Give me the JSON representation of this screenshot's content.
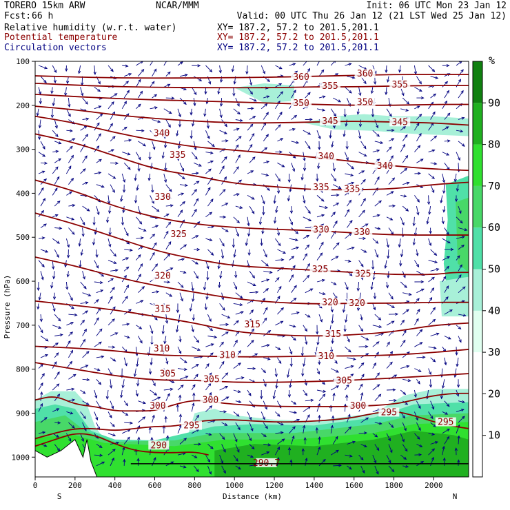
{
  "header": {
    "model": "TORERO  15km ARW",
    "org": "NCAR/MMM",
    "init": "Init: 06 UTC Mon 23 Jan 12",
    "fcst_label": "Fcst:",
    "fcst_value": "66 h",
    "valid": "Valid: 00 UTC Thu 26 Jan 12 (21 LST Wed 25 Jan 12)",
    "fields": [
      {
        "name": "Relative humidity (w.r.t. water)",
        "xy": "XY= 187.2, 57.2 to 201.5,201.1",
        "color": "#000000"
      },
      {
        "name": "Potential temperature",
        "xy": "XY= 187.2, 57.2 to 201.5,201.1",
        "color": "#8b0000"
      },
      {
        "name": "Circulation vectors",
        "xy": "XY= 187.2, 57.2 to 201.5,201.1",
        "color": "#000080"
      }
    ]
  },
  "colors": {
    "theta": "#8b0000",
    "vectors": "#00007f",
    "rh_levels": [
      "#ffffff",
      "#ffffff",
      "#ffffff",
      "#e0fff0",
      "#a8f0d8",
      "#50e0a8",
      "#48d868",
      "#30e030",
      "#20b020",
      "#108010"
    ]
  },
  "chart_data": {
    "type": "cross-section",
    "xlabel": "Distance (km)",
    "ylabel": "Pressure (hPa)",
    "x_ticks": [
      "0",
      "200",
      "400",
      "600",
      "800",
      "1000",
      "1200",
      "1400",
      "1600",
      "1800",
      "2000"
    ],
    "y_ticks": [
      "100",
      "200",
      "300",
      "400",
      "500",
      "600",
      "700",
      "800",
      "900",
      "1000"
    ],
    "xlim": [
      0,
      2175
    ],
    "ylim": [
      100,
      1045
    ],
    "y_scale": "linear, inverted",
    "end_labels": {
      "left": "S",
      "right": "N"
    },
    "colorbar": {
      "unit": "%",
      "levels": [
        0,
        10,
        20,
        30,
        40,
        50,
        60,
        70,
        80,
        90,
        100
      ],
      "tick_labels": [
        "10",
        "20",
        "30",
        "40",
        "50",
        "60",
        "70",
        "80",
        "90"
      ]
    },
    "theta_contours": [
      {
        "value": 290,
        "points": [
          [
            0,
            975
          ],
          [
            100,
            960
          ],
          [
            200,
            945
          ],
          [
            300,
            950
          ],
          [
            400,
            970
          ],
          [
            500,
            985
          ],
          [
            600,
            990
          ],
          [
            700,
            990
          ],
          [
            800,
            988
          ],
          [
            870,
            995
          ]
        ]
      },
      {
        "value": 295,
        "points": [
          [
            0,
            958
          ],
          [
            100,
            945
          ],
          [
            200,
            935
          ],
          [
            300,
            935
          ],
          [
            400,
            940
          ],
          [
            500,
            935
          ],
          [
            600,
            930
          ],
          [
            700,
            930
          ],
          [
            800,
            920
          ],
          [
            900,
            915
          ],
          [
            1000,
            915
          ],
          [
            1100,
            918
          ],
          [
            1200,
            920
          ],
          [
            1300,
            920
          ],
          [
            1400,
            918
          ],
          [
            1500,
            915
          ],
          [
            1600,
            910
          ],
          [
            1700,
            900
          ],
          [
            1800,
            895
          ],
          [
            1900,
            905
          ],
          [
            2000,
            920
          ],
          [
            2100,
            930
          ],
          [
            2175,
            935
          ]
        ]
      },
      {
        "value": 300,
        "points": [
          [
            0,
            870
          ],
          [
            100,
            860
          ],
          [
            200,
            880
          ],
          [
            300,
            885
          ],
          [
            400,
            895
          ],
          [
            500,
            895
          ],
          [
            600,
            895
          ],
          [
            700,
            880
          ],
          [
            800,
            870
          ],
          [
            900,
            875
          ],
          [
            1000,
            880
          ],
          [
            1200,
            885
          ],
          [
            1400,
            885
          ],
          [
            1600,
            885
          ],
          [
            1800,
            880
          ],
          [
            1900,
            870
          ],
          [
            2000,
            860
          ],
          [
            2100,
            855
          ],
          [
            2175,
            855
          ]
        ]
      },
      {
        "value": 305,
        "points": [
          [
            0,
            785
          ],
          [
            200,
            800
          ],
          [
            400,
            815
          ],
          [
            600,
            825
          ],
          [
            800,
            825
          ],
          [
            1000,
            830
          ],
          [
            1200,
            830
          ],
          [
            1400,
            828
          ],
          [
            1600,
            825
          ],
          [
            1800,
            820
          ],
          [
            2000,
            815
          ],
          [
            2175,
            810
          ]
        ]
      },
      {
        "value": 310,
        "points": [
          [
            0,
            748
          ],
          [
            200,
            752
          ],
          [
            400,
            758
          ],
          [
            600,
            768
          ],
          [
            800,
            770
          ],
          [
            1000,
            772
          ],
          [
            1200,
            772
          ],
          [
            1400,
            770
          ],
          [
            1600,
            770
          ],
          [
            1800,
            768
          ],
          [
            2000,
            762
          ],
          [
            2175,
            755
          ]
        ]
      },
      {
        "value": 315,
        "points": [
          [
            0,
            645
          ],
          [
            200,
            655
          ],
          [
            400,
            665
          ],
          [
            600,
            680
          ],
          [
            800,
            695
          ],
          [
            1000,
            715
          ],
          [
            1200,
            722
          ],
          [
            1400,
            725
          ],
          [
            1600,
            722
          ],
          [
            1800,
            715
          ],
          [
            2000,
            700
          ],
          [
            2175,
            695
          ]
        ]
      },
      {
        "value": 320,
        "points": [
          [
            0,
            545
          ],
          [
            200,
            565
          ],
          [
            400,
            590
          ],
          [
            600,
            610
          ],
          [
            800,
            625
          ],
          [
            1000,
            640
          ],
          [
            1200,
            648
          ],
          [
            1400,
            652
          ],
          [
            1600,
            650
          ],
          [
            1800,
            650
          ],
          [
            2000,
            648
          ],
          [
            2175,
            648
          ]
        ]
      },
      {
        "value": 325,
        "points": [
          [
            0,
            445
          ],
          [
            200,
            470
          ],
          [
            400,
            500
          ],
          [
            600,
            530
          ],
          [
            800,
            550
          ],
          [
            1000,
            565
          ],
          [
            1200,
            570
          ],
          [
            1400,
            575
          ],
          [
            1600,
            580
          ],
          [
            1800,
            585
          ],
          [
            2000,
            585
          ],
          [
            2100,
            580
          ],
          [
            2175,
            580
          ]
        ]
      },
      {
        "value": 330,
        "points": [
          [
            0,
            370
          ],
          [
            200,
            395
          ],
          [
            400,
            430
          ],
          [
            600,
            455
          ],
          [
            800,
            470
          ],
          [
            1000,
            478
          ],
          [
            1200,
            482
          ],
          [
            1400,
            485
          ],
          [
            1600,
            490
          ],
          [
            1800,
            495
          ],
          [
            2000,
            495
          ],
          [
            2175,
            495
          ]
        ]
      },
      {
        "value": 335,
        "points": [
          [
            0,
            265
          ],
          [
            200,
            285
          ],
          [
            400,
            315
          ],
          [
            600,
            345
          ],
          [
            800,
            360
          ],
          [
            1000,
            378
          ],
          [
            1200,
            385
          ],
          [
            1400,
            392
          ],
          [
            1600,
            392
          ],
          [
            1800,
            390
          ],
          [
            2000,
            380
          ],
          [
            2175,
            375
          ]
        ]
      },
      {
        "value": 340,
        "points": [
          [
            0,
            225
          ],
          [
            200,
            240
          ],
          [
            400,
            262
          ],
          [
            600,
            280
          ],
          [
            800,
            295
          ],
          [
            1000,
            302
          ],
          [
            1200,
            310
          ],
          [
            1400,
            318
          ],
          [
            1600,
            328
          ],
          [
            1800,
            338
          ],
          [
            2000,
            345
          ],
          [
            2175,
            348
          ]
        ]
      },
      {
        "value": 345,
        "points": [
          [
            0,
            202
          ],
          [
            200,
            210
          ],
          [
            400,
            222
          ],
          [
            600,
            230
          ],
          [
            800,
            236
          ],
          [
            1000,
            240
          ],
          [
            1200,
            240
          ],
          [
            1400,
            238
          ],
          [
            1600,
            236
          ],
          [
            1800,
            238
          ],
          [
            2000,
            240
          ],
          [
            2175,
            245
          ]
        ]
      },
      {
        "value": 350,
        "points": [
          [
            0,
            175
          ],
          [
            400,
            185
          ],
          [
            800,
            190
          ],
          [
            1200,
            195
          ],
          [
            1400,
            198
          ],
          [
            1600,
            200
          ],
          [
            1800,
            200
          ],
          [
            2000,
            198
          ],
          [
            2175,
            198
          ]
        ]
      },
      {
        "value": 355,
        "points": [
          [
            0,
            150
          ],
          [
            400,
            158
          ],
          [
            800,
            160
          ],
          [
            1200,
            160
          ],
          [
            1400,
            158
          ],
          [
            1600,
            158
          ],
          [
            1800,
            156
          ],
          [
            2000,
            155
          ],
          [
            2175,
            155
          ]
        ]
      },
      {
        "value": 360,
        "points": [
          [
            0,
            133
          ],
          [
            400,
            138
          ],
          [
            800,
            138
          ],
          [
            1200,
            136
          ],
          [
            1400,
            134
          ],
          [
            1600,
            132
          ],
          [
            1800,
            130
          ],
          [
            2000,
            130
          ],
          [
            2175,
            130
          ]
        ]
      }
    ],
    "theta_labels": [
      {
        "text": "360",
        "x": 1335,
        "p": 138
      },
      {
        "text": "360",
        "x": 1655,
        "p": 130
      },
      {
        "text": "355",
        "x": 1480,
        "p": 158
      },
      {
        "text": "355",
        "x": 1830,
        "p": 155
      },
      {
        "text": "350",
        "x": 1335,
        "p": 197
      },
      {
        "text": "350",
        "x": 1655,
        "p": 195
      },
      {
        "text": "345",
        "x": 1480,
        "p": 238
      },
      {
        "text": "345",
        "x": 1830,
        "p": 240
      },
      {
        "text": "340",
        "x": 635,
        "p": 265
      },
      {
        "text": "340",
        "x": 1460,
        "p": 318
      },
      {
        "text": "340",
        "x": 1755,
        "p": 340
      },
      {
        "text": "335",
        "x": 715,
        "p": 315
      },
      {
        "text": "335",
        "x": 1435,
        "p": 388
      },
      {
        "text": "335",
        "x": 1590,
        "p": 392
      },
      {
        "text": "330",
        "x": 640,
        "p": 410
      },
      {
        "text": "330",
        "x": 1435,
        "p": 485
      },
      {
        "text": "330",
        "x": 1640,
        "p": 490
      },
      {
        "text": "325",
        "x": 720,
        "p": 495
      },
      {
        "text": "325",
        "x": 1430,
        "p": 575
      },
      {
        "text": "325",
        "x": 1645,
        "p": 585
      },
      {
        "text": "320",
        "x": 640,
        "p": 590
      },
      {
        "text": "320",
        "x": 1480,
        "p": 650
      },
      {
        "text": "320",
        "x": 1615,
        "p": 652
      },
      {
        "text": "315",
        "x": 640,
        "p": 665
      },
      {
        "text": "315",
        "x": 1090,
        "p": 700
      },
      {
        "text": "315",
        "x": 1495,
        "p": 722
      },
      {
        "text": "310",
        "x": 635,
        "p": 755
      },
      {
        "text": "310",
        "x": 965,
        "p": 770
      },
      {
        "text": "310",
        "x": 1460,
        "p": 772
      },
      {
        "text": "305",
        "x": 665,
        "p": 812
      },
      {
        "text": "305",
        "x": 885,
        "p": 825
      },
      {
        "text": "305",
        "x": 1550,
        "p": 828
      },
      {
        "text": "300",
        "x": 615,
        "p": 885
      },
      {
        "text": "300",
        "x": 880,
        "p": 872
      },
      {
        "text": "300",
        "x": 1620,
        "p": 885
      },
      {
        "text": "295",
        "x": 785,
        "p": 930
      },
      {
        "text": "295",
        "x": 1775,
        "p": 900
      },
      {
        "text": "295",
        "x": 2060,
        "p": 922
      },
      {
        "text": "290",
        "x": 620,
        "p": 975
      },
      {
        "text": "290.7",
        "x": 1160,
        "p": 1015
      }
    ]
  }
}
